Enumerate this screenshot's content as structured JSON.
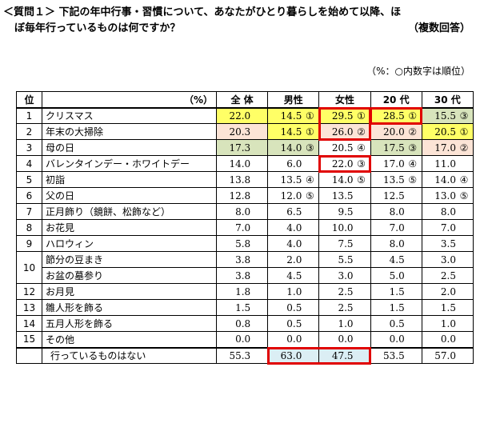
{
  "question": {
    "line1": "＜質問１＞ 下記の年中行事・習慣について、あなたがひとり暮らしを始めて以降、ほ",
    "line2": "ぼ毎年行っているものは何ですか？",
    "multiple": "（複数回答）"
  },
  "note": "（%：○内数字は順位）",
  "table": {
    "headers": {
      "rank": "位",
      "unit": "（%）",
      "all": "全 体",
      "male": "男性",
      "female": "女性",
      "age20": "20 代",
      "age30": "30 代"
    },
    "rows": [
      {
        "rank": "1",
        "item": "クリスマス",
        "all": "22.0",
        "male": "14.5",
        "male_r": "①",
        "female": "29.5",
        "female_r": "①",
        "age20": "28.5",
        "age20_r": "①",
        "age30": "15.5",
        "age30_r": "③"
      },
      {
        "rank": "2",
        "item": "年末の大掃除",
        "all": "20.3",
        "male": "14.5",
        "male_r": "①",
        "female": "26.0",
        "female_r": "②",
        "age20": "20.0",
        "age20_r": "②",
        "age30": "20.5",
        "age30_r": "①"
      },
      {
        "rank": "3",
        "item": "母の日",
        "all": "17.3",
        "male": "14.0",
        "male_r": "③",
        "female": "20.5",
        "female_r": "④",
        "age20": "17.5",
        "age20_r": "③",
        "age30": "17.0",
        "age30_r": "②"
      },
      {
        "rank": "4",
        "item": "バレンタインデー・ホワイトデー",
        "all": "14.0",
        "male": "6.0",
        "male_r": "",
        "female": "22.0",
        "female_r": "③",
        "age20": "17.0",
        "age20_r": "④",
        "age30": "11.0",
        "age30_r": ""
      },
      {
        "rank": "5",
        "item": "初詣",
        "all": "13.8",
        "male": "13.5",
        "male_r": "④",
        "female": "14.0",
        "female_r": "⑤",
        "age20": "13.5",
        "age20_r": "⑤",
        "age30": "14.0",
        "age30_r": "④"
      },
      {
        "rank": "6",
        "item": "父の日",
        "all": "12.8",
        "male": "12.0",
        "male_r": "⑤",
        "female": "13.5",
        "female_r": "",
        "age20": "12.5",
        "age20_r": "",
        "age30": "13.0",
        "age30_r": "⑤"
      },
      {
        "rank": "7",
        "item": "正月飾り（鏡餅、松飾など）",
        "all": "8.0",
        "male": "6.5",
        "male_r": "",
        "female": "9.5",
        "female_r": "",
        "age20": "8.0",
        "age20_r": "",
        "age30": "8.0",
        "age30_r": ""
      },
      {
        "rank": "8",
        "item": "お花見",
        "all": "7.0",
        "male": "4.0",
        "male_r": "",
        "female": "10.0",
        "female_r": "",
        "age20": "7.0",
        "age20_r": "",
        "age30": "7.0",
        "age30_r": ""
      },
      {
        "rank": "9",
        "item": "ハロウィン",
        "all": "5.8",
        "male": "4.0",
        "male_r": "",
        "female": "7.5",
        "female_r": "",
        "age20": "8.0",
        "age20_r": "",
        "age30": "3.5",
        "age30_r": ""
      },
      {
        "rank": "10",
        "item": "節分の豆まき",
        "all": "3.8",
        "male": "2.0",
        "male_r": "",
        "female": "5.5",
        "female_r": "",
        "age20": "4.5",
        "age20_r": "",
        "age30": "3.0",
        "age30_r": ""
      },
      {
        "rank": "",
        "item": "お盆の墓参り",
        "all": "3.8",
        "male": "4.5",
        "male_r": "",
        "female": "3.0",
        "female_r": "",
        "age20": "5.0",
        "age20_r": "",
        "age30": "2.5",
        "age30_r": ""
      },
      {
        "rank": "12",
        "item": "お月見",
        "all": "1.8",
        "male": "1.0",
        "male_r": "",
        "female": "2.5",
        "female_r": "",
        "age20": "1.5",
        "age20_r": "",
        "age30": "2.0",
        "age30_r": ""
      },
      {
        "rank": "13",
        "item": "雛人形を飾る",
        "all": "1.5",
        "male": "0.5",
        "male_r": "",
        "female": "2.5",
        "female_r": "",
        "age20": "1.5",
        "age20_r": "",
        "age30": "1.5",
        "age30_r": ""
      },
      {
        "rank": "14",
        "item": "五月人形を飾る",
        "all": "0.8",
        "male": "0.5",
        "male_r": "",
        "female": "1.0",
        "female_r": "",
        "age20": "0.5",
        "age20_r": "",
        "age30": "1.0",
        "age30_r": ""
      },
      {
        "rank": "15",
        "item": "その他",
        "all": "0.0",
        "male": "0.0",
        "male_r": "",
        "female": "0.0",
        "female_r": "",
        "age20": "0.0",
        "age20_r": "",
        "age30": "0.0",
        "age30_r": ""
      }
    ],
    "none_row": {
      "item": "行っているものはない",
      "all": "55.3",
      "male": "63.0",
      "female": "47.5",
      "age20": "53.5",
      "age20_r": "",
      "age30": "57.0"
    }
  },
  "colors": {
    "yellow": "#ffff66",
    "peach": "#fce4d6",
    "green": "#d8e4bc",
    "blue": "#dbeef4",
    "highlight": "#e00000"
  }
}
